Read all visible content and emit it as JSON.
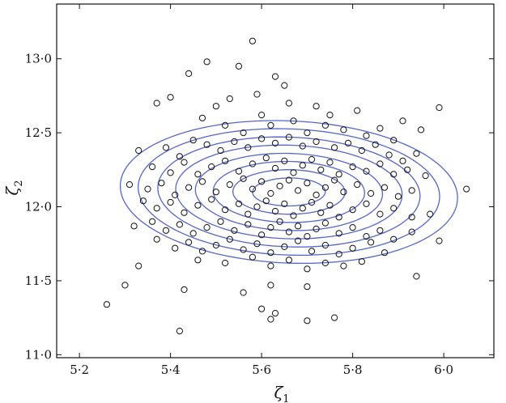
{
  "chart_data": {
    "type": "scatter",
    "title": "",
    "xlabel": "ζ",
    "xlabel_sub": "1",
    "ylabel": "ζ",
    "ylabel_sub": "2",
    "xlim": [
      5.15,
      6.11
    ],
    "ylim": [
      10.98,
      13.37
    ],
    "x_ticks": [
      5.2,
      5.4,
      5.6,
      5.8,
      6.0
    ],
    "x_tick_labels": [
      "5·2",
      "5·4",
      "5·6",
      "5·8",
      "6·0"
    ],
    "y_ticks": [
      11.0,
      11.5,
      12.0,
      12.5,
      13.0
    ],
    "y_tick_labels": [
      "11·0",
      "11·5",
      "12·0",
      "12·5",
      "13·0"
    ],
    "grid": false,
    "legend": "none",
    "colors": {
      "contour": "#5566cc",
      "points": "#111111"
    },
    "contours": {
      "center": [
        5.66,
        12.1
      ],
      "rotation_deg": 30,
      "levels": [
        {
          "a": 0.085,
          "b": 0.1
        },
        {
          "a": 0.13,
          "b": 0.16
        },
        {
          "a": 0.175,
          "b": 0.22
        },
        {
          "a": 0.215,
          "b": 0.28
        },
        {
          "a": 0.26,
          "b": 0.34
        },
        {
          "a": 0.3,
          "b": 0.4
        },
        {
          "a": 0.345,
          "b": 0.46
        },
        {
          "a": 0.385,
          "b": 0.52
        }
      ]
    },
    "points": [
      [
        5.58,
        13.12
      ],
      [
        5.48,
        12.98
      ],
      [
        5.55,
        12.95
      ],
      [
        5.63,
        12.88
      ],
      [
        5.44,
        12.9
      ],
      [
        5.65,
        12.82
      ],
      [
        5.4,
        12.74
      ],
      [
        5.37,
        12.7
      ],
      [
        5.53,
        12.73
      ],
      [
        5.59,
        12.76
      ],
      [
        5.5,
        12.68
      ],
      [
        5.6,
        12.62
      ],
      [
        5.66,
        12.7
      ],
      [
        5.72,
        12.68
      ],
      [
        5.75,
        12.62
      ],
      [
        5.81,
        12.65
      ],
      [
        5.91,
        12.58
      ],
      [
        5.99,
        12.67
      ],
      [
        5.47,
        12.6
      ],
      [
        5.52,
        12.55
      ],
      [
        5.56,
        12.5
      ],
      [
        5.62,
        12.55
      ],
      [
        5.67,
        12.58
      ],
      [
        5.7,
        12.5
      ],
      [
        5.74,
        12.55
      ],
      [
        5.78,
        12.52
      ],
      [
        5.83,
        12.48
      ],
      [
        5.86,
        12.53
      ],
      [
        5.89,
        12.45
      ],
      [
        5.95,
        12.52
      ],
      [
        5.33,
        12.38
      ],
      [
        5.39,
        12.4
      ],
      [
        5.42,
        12.34
      ],
      [
        5.45,
        12.45
      ],
      [
        5.48,
        12.42
      ],
      [
        5.51,
        12.38
      ],
      [
        5.54,
        12.44
      ],
      [
        5.57,
        12.4
      ],
      [
        5.6,
        12.46
      ],
      [
        5.63,
        12.43
      ],
      [
        5.66,
        12.47
      ],
      [
        5.69,
        12.41
      ],
      [
        5.72,
        12.44
      ],
      [
        5.76,
        12.4
      ],
      [
        5.79,
        12.43
      ],
      [
        5.82,
        12.38
      ],
      [
        5.85,
        12.42
      ],
      [
        5.88,
        12.35
      ],
      [
        5.91,
        12.31
      ],
      [
        5.94,
        12.36
      ],
      [
        5.36,
        12.27
      ],
      [
        5.4,
        12.23
      ],
      [
        5.43,
        12.3
      ],
      [
        5.46,
        12.22
      ],
      [
        5.49,
        12.27
      ],
      [
        5.52,
        12.31
      ],
      [
        5.55,
        12.24
      ],
      [
        5.58,
        12.29
      ],
      [
        5.61,
        12.33
      ],
      [
        5.63,
        12.26
      ],
      [
        5.65,
        12.31
      ],
      [
        5.67,
        12.23
      ],
      [
        5.69,
        12.28
      ],
      [
        5.71,
        12.32
      ],
      [
        5.73,
        12.25
      ],
      [
        5.75,
        12.3
      ],
      [
        5.77,
        12.22
      ],
      [
        5.8,
        12.27
      ],
      [
        5.83,
        12.24
      ],
      [
        5.86,
        12.29
      ],
      [
        5.89,
        12.22
      ],
      [
        5.92,
        12.25
      ],
      [
        5.96,
        12.21
      ],
      [
        6.05,
        12.12
      ],
      [
        5.31,
        12.15
      ],
      [
        5.35,
        12.12
      ],
      [
        5.38,
        12.16
      ],
      [
        5.41,
        12.08
      ],
      [
        5.44,
        12.13
      ],
      [
        5.47,
        12.17
      ],
      [
        5.5,
        12.1
      ],
      [
        5.53,
        12.15
      ],
      [
        5.56,
        12.19
      ],
      [
        5.58,
        12.12
      ],
      [
        5.6,
        12.17
      ],
      [
        5.62,
        12.09
      ],
      [
        5.64,
        12.14
      ],
      [
        5.66,
        12.18
      ],
      [
        5.68,
        12.11
      ],
      [
        5.7,
        12.16
      ],
      [
        5.72,
        12.08
      ],
      [
        5.74,
        12.13
      ],
      [
        5.76,
        12.18
      ],
      [
        5.78,
        12.1
      ],
      [
        5.81,
        12.15
      ],
      [
        5.84,
        12.09
      ],
      [
        5.87,
        12.13
      ],
      [
        5.9,
        12.07
      ],
      [
        5.93,
        12.11
      ],
      [
        5.34,
        12.04
      ],
      [
        5.37,
        11.99
      ],
      [
        5.4,
        12.03
      ],
      [
        5.43,
        11.96
      ],
      [
        5.46,
        12.01
      ],
      [
        5.49,
        12.05
      ],
      [
        5.52,
        11.98
      ],
      [
        5.55,
        12.02
      ],
      [
        5.57,
        11.95
      ],
      [
        5.59,
        12.0
      ],
      [
        5.61,
        12.04
      ],
      [
        5.63,
        11.97
      ],
      [
        5.65,
        12.02
      ],
      [
        5.67,
        11.94
      ],
      [
        5.69,
        11.99
      ],
      [
        5.71,
        12.03
      ],
      [
        5.73,
        11.96
      ],
      [
        5.75,
        12.01
      ],
      [
        5.77,
        11.93
      ],
      [
        5.8,
        11.98
      ],
      [
        5.83,
        12.02
      ],
      [
        5.86,
        11.95
      ],
      [
        5.89,
        11.99
      ],
      [
        5.93,
        11.93
      ],
      [
        5.97,
        11.95
      ],
      [
        5.32,
        11.87
      ],
      [
        5.36,
        11.9
      ],
      [
        5.39,
        11.84
      ],
      [
        5.42,
        11.88
      ],
      [
        5.45,
        11.82
      ],
      [
        5.48,
        11.86
      ],
      [
        5.51,
        11.9
      ],
      [
        5.54,
        11.84
      ],
      [
        5.57,
        11.88
      ],
      [
        5.6,
        11.81
      ],
      [
        5.62,
        11.86
      ],
      [
        5.64,
        11.9
      ],
      [
        5.66,
        11.83
      ],
      [
        5.68,
        11.87
      ],
      [
        5.7,
        11.8
      ],
      [
        5.72,
        11.85
      ],
      [
        5.74,
        11.89
      ],
      [
        5.77,
        11.82
      ],
      [
        5.8,
        11.86
      ],
      [
        5.83,
        11.8
      ],
      [
        5.86,
        11.84
      ],
      [
        5.89,
        11.78
      ],
      [
        5.93,
        11.83
      ],
      [
        5.37,
        11.78
      ],
      [
        5.41,
        11.72
      ],
      [
        5.44,
        11.76
      ],
      [
        5.47,
        11.7
      ],
      [
        5.5,
        11.74
      ],
      [
        5.53,
        11.78
      ],
      [
        5.56,
        11.71
      ],
      [
        5.59,
        11.75
      ],
      [
        5.62,
        11.69
      ],
      [
        5.65,
        11.73
      ],
      [
        5.68,
        11.77
      ],
      [
        5.71,
        11.7
      ],
      [
        5.74,
        11.74
      ],
      [
        5.77,
        11.68
      ],
      [
        5.8,
        11.72
      ],
      [
        5.84,
        11.76
      ],
      [
        5.87,
        11.69
      ],
      [
        5.99,
        11.77
      ],
      [
        5.33,
        11.6
      ],
      [
        5.46,
        11.64
      ],
      [
        5.52,
        11.62
      ],
      [
        5.58,
        11.66
      ],
      [
        5.62,
        11.6
      ],
      [
        5.66,
        11.64
      ],
      [
        5.7,
        11.58
      ],
      [
        5.74,
        11.62
      ],
      [
        5.78,
        11.6
      ],
      [
        5.82,
        11.63
      ],
      [
        5.3,
        11.47
      ],
      [
        5.43,
        11.44
      ],
      [
        5.56,
        11.42
      ],
      [
        5.62,
        11.47
      ],
      [
        5.7,
        11.46
      ],
      [
        5.94,
        11.53
      ],
      [
        5.26,
        11.34
      ],
      [
        5.6,
        11.31
      ],
      [
        5.63,
        11.28
      ],
      [
        5.62,
        11.24
      ],
      [
        5.7,
        11.23
      ],
      [
        5.76,
        11.25
      ],
      [
        5.42,
        11.16
      ]
    ]
  }
}
